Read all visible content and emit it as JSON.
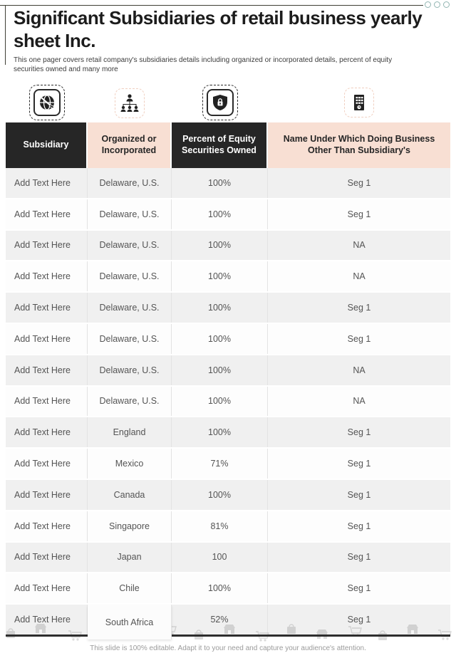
{
  "slide": {
    "title": "Significant Subsidiaries of retail business yearly sheet Inc.",
    "subtitle": "This one pager covers retail company's subsidiaries details including organized or incorporated details, percent of equity securities owned and many more",
    "footer_note": "This slide is 100% editable. Adapt it to your need and capture your audience's attention."
  },
  "colors": {
    "accent_dark": "#262626",
    "accent_peach": "#F8DFD3",
    "row_alt_gray": "#F0F0F0",
    "dot_teal": "#92B5B2"
  },
  "icons": [
    {
      "name": "globe-icon"
    },
    {
      "name": "org-hierarchy-icon"
    },
    {
      "name": "shield-lock-icon"
    },
    {
      "name": "office-building-icon"
    }
  ],
  "table": {
    "headers": [
      "Subsidiary",
      "Organized or Incorporated",
      "Percent of Equity Securities Owned",
      "Name Under Which Doing Business Other Than Subsidiary's"
    ],
    "rows": [
      [
        "Add Text Here",
        "Delaware, U.S.",
        "100%",
        "Seg 1"
      ],
      [
        "Add Text Here",
        "Delaware, U.S.",
        "100%",
        "Seg 1"
      ],
      [
        "Add Text Here",
        "Delaware, U.S.",
        "100%",
        "NA"
      ],
      [
        "Add Text Here",
        "Delaware, U.S.",
        "100%",
        "NA"
      ],
      [
        "Add Text Here",
        "Delaware, U.S.",
        "100%",
        "Seg 1"
      ],
      [
        "Add Text Here",
        "Delaware, U.S.",
        "100%",
        "Seg 1"
      ],
      [
        "Add Text Here",
        "Delaware, U.S.",
        "100%",
        "NA"
      ],
      [
        "Add Text Here",
        "Delaware, U.S.",
        "100%",
        "NA"
      ],
      [
        "Add Text Here",
        "England",
        "100%",
        "Seg 1"
      ],
      [
        "Add Text Here",
        "Mexico",
        "71%",
        "Seg 1"
      ],
      [
        "Add Text Here",
        "Canada",
        "100%",
        "Seg 1"
      ],
      [
        "Add Text Here",
        "Singapore",
        "81%",
        "Seg 1"
      ],
      [
        "Add Text Here",
        "Japan",
        "100",
        "Seg 1"
      ],
      [
        "Add Text Here",
        "Chile",
        "100%",
        "Seg 1"
      ],
      [
        "Add Text Here",
        "South Africa",
        "52%",
        "Seg 1"
      ]
    ]
  }
}
